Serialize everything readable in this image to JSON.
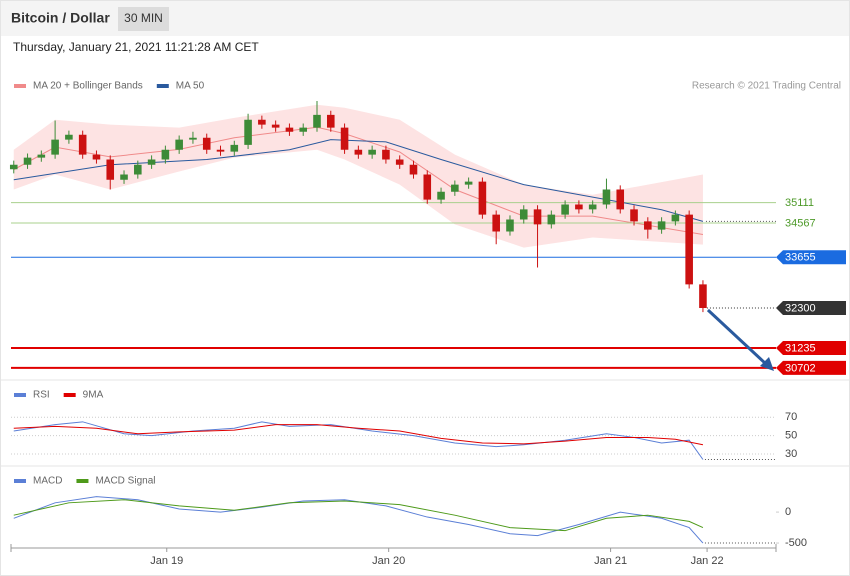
{
  "header": {
    "title": "Bitcoin / Dollar",
    "interval": "30 MIN",
    "timestamp": "Thursday, January 21, 2021 11:21:28 AM CET",
    "source": "Research © 2021 Trading Central"
  },
  "chart_data": [
    {
      "type": "candlestick",
      "xlim": [
        -0.2,
        55.3
      ],
      "ylim": [
        30460,
        37980
      ],
      "up_color": "#3d8b37",
      "down_color": "#cc1111",
      "open": [
        36000,
        36120,
        36310,
        36390,
        36790,
        36920,
        36390,
        36260,
        35720,
        35860,
        36120,
        36260,
        36520,
        36790,
        36840,
        36520,
        36470,
        36650,
        37320,
        37190,
        37110,
        37000,
        37110,
        37450,
        37110,
        36520,
        36390,
        36520,
        36260,
        36120,
        35860,
        35190,
        35400,
        35590,
        35670,
        34790,
        34340,
        34660,
        34930,
        34530,
        34790,
        35060,
        34930,
        35060,
        35460,
        34930,
        34610,
        34390,
        34610,
        34790,
        32930
      ],
      "high": [
        36230,
        36420,
        36500,
        37300,
        37030,
        37030,
        36500,
        36370,
        35970,
        36230,
        36370,
        36630,
        36900,
        37000,
        36950,
        36630,
        36760,
        37480,
        37430,
        37300,
        37220,
        37220,
        37820,
        37560,
        37220,
        36630,
        36630,
        36630,
        36370,
        36230,
        35970,
        35510,
        35700,
        35780,
        35780,
        34900,
        34770,
        35040,
        35040,
        34900,
        35170,
        35170,
        35170,
        35750,
        35570,
        35040,
        34720,
        34720,
        34900,
        34900,
        33040
      ],
      "low": [
        35890,
        36010,
        36200,
        36280,
        36680,
        36280,
        36150,
        35460,
        35610,
        35750,
        36010,
        36150,
        36410,
        36680,
        36410,
        36360,
        36360,
        36540,
        37080,
        37000,
        36890,
        36890,
        37000,
        37000,
        36410,
        36280,
        36280,
        36150,
        36010,
        35750,
        35080,
        35080,
        35290,
        35480,
        34680,
        34000,
        34230,
        34550,
        33380,
        34420,
        34680,
        34820,
        34820,
        34950,
        34820,
        34500,
        34150,
        34280,
        34500,
        32820,
        32190
      ],
      "close": [
        36120,
        36310,
        36390,
        36790,
        36920,
        36390,
        36260,
        35720,
        35860,
        36120,
        36260,
        36520,
        36790,
        36840,
        36520,
        36470,
        36650,
        37320,
        37190,
        37110,
        37000,
        37110,
        37450,
        37110,
        36520,
        36390,
        36520,
        36260,
        36120,
        35860,
        35190,
        35400,
        35590,
        35670,
        34790,
        34340,
        34660,
        34930,
        34530,
        34790,
        35060,
        34930,
        35060,
        35460,
        34930,
        34610,
        34390,
        34610,
        34790,
        32930,
        32300
      ],
      "overlays": [
        {
          "name": "MA 20 + Bollinger Bands",
          "color": "#f08a8a",
          "band_color": "#fde3e3",
          "x": [
            0,
            3,
            7,
            12,
            16,
            22,
            24,
            28,
            32,
            37,
            42,
            50
          ],
          "upper": [
            36520,
            37320,
            37190,
            37110,
            37370,
            37720,
            37640,
            37320,
            36390,
            35590,
            35320,
            35860
          ],
          "middle": [
            35990,
            36590,
            36330,
            36530,
            36840,
            37120,
            36950,
            36460,
            35460,
            34750,
            34750,
            34260
          ],
          "lower": [
            35460,
            35860,
            35460,
            35940,
            36310,
            36520,
            36260,
            35590,
            34530,
            33910,
            34180,
            33990
          ]
        },
        {
          "name": "MA 50",
          "color": "#2a5a9e",
          "x": [
            0,
            7,
            14,
            20,
            23,
            27,
            31,
            37,
            43,
            47,
            50
          ],
          "values": [
            35720,
            36120,
            36260,
            36520,
            36790,
            36730,
            36260,
            35590,
            35190,
            34920,
            34610
          ]
        }
      ],
      "levels": [
        {
          "value": 35111,
          "color": "#a8d08d",
          "text_color": "#4e9a2a",
          "tag": false,
          "dotted": false
        },
        {
          "value": 34567,
          "color": "#a8d08d",
          "text_color": "#4e9a2a",
          "tag": false,
          "dotted": false
        },
        {
          "value": 33655,
          "color": "#1a6be0",
          "text_color": "#ffffff",
          "tag": true,
          "dotted": false
        },
        {
          "value": 32300,
          "color": "#333333",
          "text_color": "#ffffff",
          "tag": true,
          "dotted": true
        },
        {
          "value": 31235,
          "color": "#e00000",
          "text_color": "#ffffff",
          "tag": true,
          "dotted": false
        },
        {
          "value": 30702,
          "color": "#e00000",
          "text_color": "#ffffff",
          "tag": true,
          "dotted": false
        }
      ]
    },
    {
      "type": "line",
      "xlim": [
        -0.2,
        55.3
      ],
      "ylim": [
        18,
        104
      ],
      "yticks": [
        70,
        50,
        30
      ],
      "grid": true,
      "series": [
        {
          "name": "RSI",
          "color": "#5b7fd6",
          "x": [
            0,
            3,
            5,
            8,
            10,
            13,
            16,
            18,
            20,
            23,
            26,
            29,
            32,
            35,
            37,
            40,
            43,
            45,
            47,
            49,
            50
          ],
          "values": [
            55,
            62,
            65,
            52,
            50,
            55,
            58,
            65,
            60,
            62,
            55,
            50,
            42,
            38,
            40,
            45,
            52,
            48,
            42,
            45,
            24
          ]
        },
        {
          "name": "9MA",
          "color": "#e00000",
          "x": [
            0,
            3,
            6,
            9,
            12,
            16,
            19,
            22,
            25,
            28,
            31,
            34,
            37,
            40,
            43,
            46,
            48,
            50
          ],
          "values": [
            58,
            60,
            58,
            52,
            54,
            56,
            62,
            62,
            58,
            55,
            47,
            42,
            41,
            44,
            48,
            48,
            46,
            40
          ]
        }
      ]
    },
    {
      "type": "line",
      "xlim": [
        -0.2,
        55.3
      ],
      "ylim": [
        -580,
        680
      ],
      "yticks": [
        0,
        -500
      ],
      "grid": false,
      "xticks": [
        {
          "value": 11.1,
          "label": "Jan 19"
        },
        {
          "value": 27.2,
          "label": "Jan 20"
        },
        {
          "value": 43.3,
          "label": "Jan 21"
        },
        {
          "value": 50.3,
          "label": "Jan 22"
        }
      ],
      "series": [
        {
          "name": "MACD",
          "color": "#5b7fd6",
          "x": [
            0,
            3,
            6,
            9,
            12,
            15,
            18,
            21,
            24,
            27,
            30,
            33,
            36,
            38,
            41,
            44,
            47,
            49,
            50
          ],
          "values": [
            -100,
            150,
            250,
            200,
            50,
            0,
            80,
            180,
            200,
            100,
            -80,
            -200,
            -350,
            -380,
            -200,
            0,
            -100,
            -250,
            -500
          ]
        },
        {
          "name": "MACD Signal",
          "color": "#4e9a1a",
          "x": [
            0,
            4,
            8,
            12,
            16,
            20,
            24,
            28,
            32,
            36,
            40,
            43,
            46,
            49,
            50
          ],
          "values": [
            -50,
            150,
            200,
            100,
            30,
            150,
            180,
            120,
            -50,
            -250,
            -300,
            -100,
            -50,
            -150,
            -250
          ]
        }
      ]
    }
  ]
}
